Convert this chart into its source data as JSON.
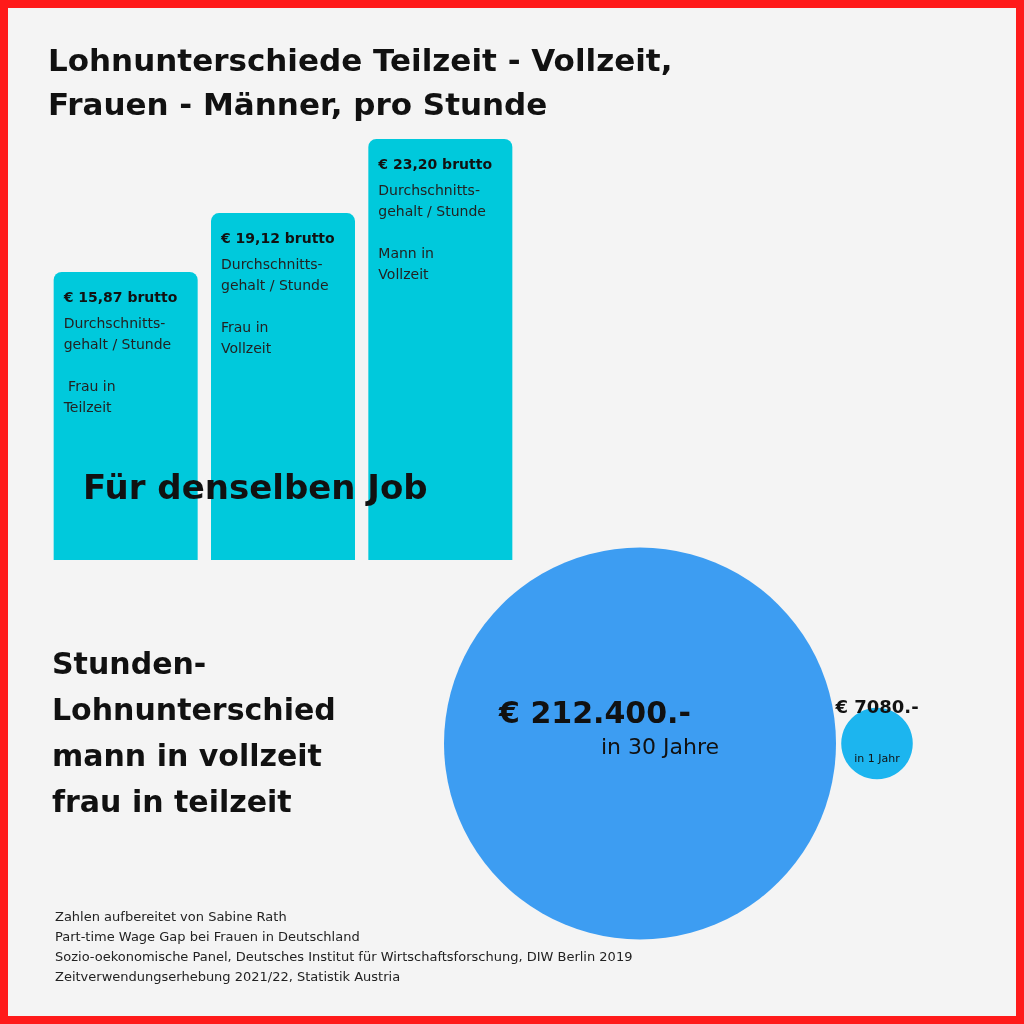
{
  "chart_data": [
    {
      "type": "bar",
      "title": "Lohnunterschiede Teilzeit - Vollzeit,\nFrauen - Männer, pro Stunde",
      "categories": [
        "Durchschnitts-\ngehalt / Stunde\n\n Frau in\nTeilzeit",
        "Durchschnitts-\ngehalt / Stunde\n\nFrau in\nVollzeit",
        "Durchschnitts-\ngehalt / Stunde\n\nMann in\nVollzeit"
      ],
      "values": [
        15.87,
        19.12,
        23.2
      ],
      "value_labels": [
        "€ 15,87 brutto",
        "€ 19,12 brutto",
        "€ 23,20 brutto"
      ],
      "color": "#00c9dc",
      "annotations": [
        "Für denselben Job"
      ]
    },
    {
      "type": "other",
      "title": "Stunden-\nLohnunterschied\nmann in vollzeit\nfrau in teilzeit",
      "categories": [
        "in 30 Jahre",
        "in 1 Jahr"
      ],
      "values": [
        212400,
        7080
      ],
      "value_labels": [
        "€ 212.400.-",
        "€ 7080.-"
      ],
      "colors": [
        "#3d9df2",
        "#1cb5ef"
      ],
      "annotations": [
        "Zahlen aufbereitet von Sabine Rath",
        "Part-time Wage Gap bei Frauen in Deutschland",
        "Sozio-oekonomische Panel, Deutsches Institut für Wirtschaftsforschung, DIW Berlin 2019",
        "Zeitverwendungserhebung 2021/22, Statistik Austria"
      ]
    }
  ]
}
